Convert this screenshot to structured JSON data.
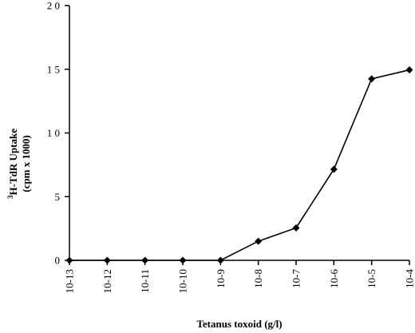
{
  "chart_data": {
    "type": "line",
    "title": "",
    "xlabel": "Tetanus toxoid (g/l)",
    "ylabel": {
      "line1_prefix_sup": "3",
      "line1_text": "H-TdR Uptake",
      "line2": "(cpm x 1000)"
    },
    "categories": [
      "10-13",
      "10-12",
      "10-11",
      "10-10",
      "10-9",
      "10-8",
      "10-7",
      "10-6",
      "10-5",
      "10-4"
    ],
    "series": [
      {
        "values": [
          0.0,
          0.0,
          0.0,
          0.0,
          0.0,
          1.5,
          2.55,
          7.15,
          14.25,
          14.95
        ],
        "color": "#000000",
        "marker": "diamond"
      }
    ],
    "ylim": [
      0,
      20
    ],
    "yticks": [
      0,
      5,
      10,
      15,
      20
    ],
    "ytick_labels": [
      "0",
      "5",
      "1 0",
      "1 5",
      "2 0"
    ],
    "grid": false,
    "legend": "none"
  }
}
